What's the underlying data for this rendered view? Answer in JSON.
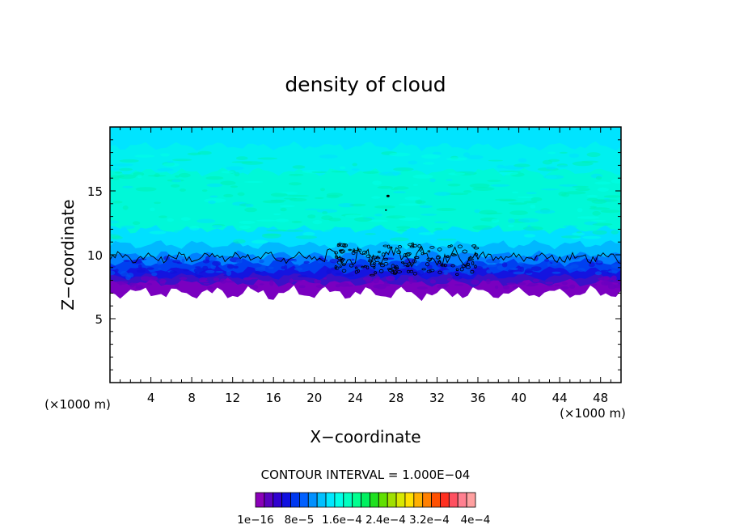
{
  "chart_data": {
    "type": "heatmap",
    "title": "density of cloud",
    "xlabel": "X−coordinate",
    "ylabel": "Z−coordinate",
    "x_unit_left": "(×1000 m)",
    "x_unit_right": "(×1000 m)",
    "xlim": [
      0,
      50
    ],
    "ylim": [
      0,
      20
    ],
    "x_ticks": [
      4,
      8,
      12,
      16,
      20,
      24,
      28,
      32,
      36,
      40,
      44,
      48
    ],
    "y_ticks": [
      5,
      10,
      15
    ],
    "contour_interval_text": "CONTOUR INTERVAL = 1.000E−04",
    "colorbar": {
      "labels": [
        "1e−16",
        "8e−5",
        "1.6e−4",
        "2.4e−4",
        "3.2e−4",
        "4e−4"
      ],
      "colors": [
        "#8a00b8",
        "#5a00c0",
        "#3000d0",
        "#1010e0",
        "#0038f0",
        "#0060ff",
        "#0090ff",
        "#00c0ff",
        "#00e8ff",
        "#00ffe8",
        "#00ffc0",
        "#00ff90",
        "#00f060",
        "#20e020",
        "#60e000",
        "#a0e000",
        "#d8e800",
        "#ffe000",
        "#ffb000",
        "#ff8000",
        "#ff5000",
        "#ff3020",
        "#ff5060",
        "#ff8090",
        "#ffa0a0"
      ]
    },
    "field_layers": [
      {
        "z_range": [
          7.0,
          7.8
        ],
        "color": "#7a00c0"
      },
      {
        "z_range": [
          7.8,
          8.3
        ],
        "color": "#3a10c8"
      },
      {
        "z_range": [
          8.3,
          8.8
        ],
        "color": "#1414e0"
      },
      {
        "z_range": [
          8.8,
          9.4
        ],
        "color": "#0040f0"
      },
      {
        "z_range": [
          9.4,
          10.0
        ],
        "color": "#0080ff"
      },
      {
        "z_range": [
          10.0,
          10.8
        ],
        "color": "#00b8ff"
      },
      {
        "z_range": [
          10.8,
          12.0
        ],
        "color": "#00e0ff"
      },
      {
        "z_range": [
          12.0,
          16.5
        ],
        "color": "#00f8d8"
      },
      {
        "z_range": [
          16.5,
          18.5
        ],
        "color": "#00f0f0"
      },
      {
        "z_range": [
          18.5,
          20.0
        ],
        "color": "#00e4ff"
      }
    ]
  }
}
